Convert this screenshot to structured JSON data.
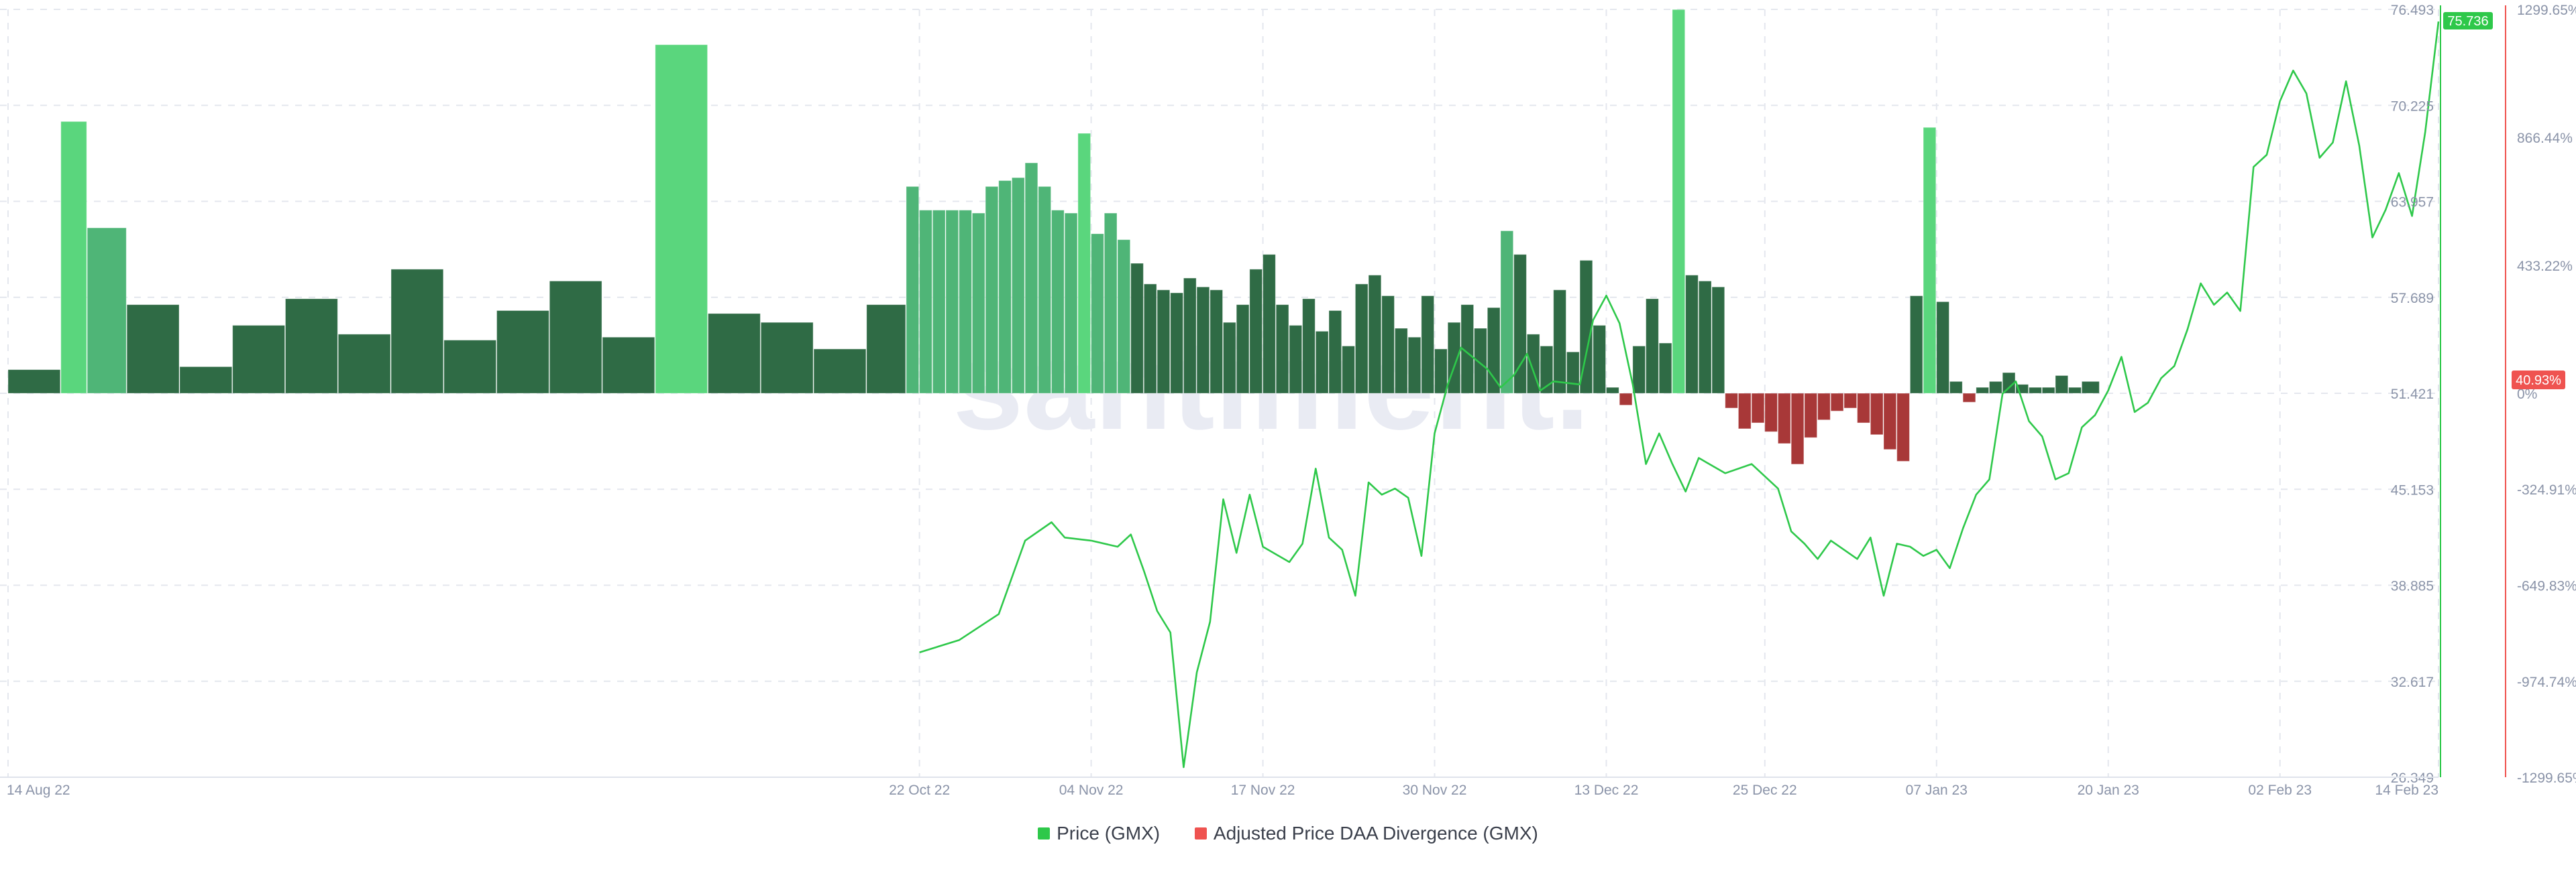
{
  "chart_data": {
    "type": "bar+line",
    "watermark": "santiment.",
    "x_ticks": [
      "14 Aug 22",
      "22 Oct 22",
      "04 Nov 22",
      "17 Nov 22",
      "30 Nov 22",
      "13 Dec 22",
      "25 Dec 22",
      "07 Jan 23",
      "20 Jan 23",
      "02 Feb 23",
      "14 Feb 23"
    ],
    "y_left_ticks": [
      "76.493",
      "70.225",
      "63.957",
      "57.689",
      "51.421",
      "45.153",
      "38.885",
      "32.617",
      "26.349"
    ],
    "y_left_range": [
      26.349,
      76.493
    ],
    "y_right_ticks": [
      "1299.65%",
      "866.44%",
      "433.22%",
      "0%",
      "-324.91%",
      "-649.83%",
      "-974.74%",
      "-1299.65%"
    ],
    "y_right_range": [
      -1299.65,
      1299.65
    ],
    "current_price_label": "75.736",
    "current_divergence_label": "40.93%",
    "colors": {
      "price_line": "#2ec84a",
      "bar_dark": "#2f6b45",
      "bar_mid": "#4fb577",
      "bar_light": "#5ad67d",
      "bar_negative": "#a83838",
      "price_badge": "#2ec84a",
      "divergence_badge": "#ef5350",
      "grid": "#e4e7ee",
      "axis_text": "#8a93a8"
    },
    "legend": [
      {
        "label": "Price (GMX)",
        "color": "#2ec84a"
      },
      {
        "label": "Adjusted Price DAA Divergence (GMX)",
        "color": "#ef5350"
      }
    ],
    "series": [
      {
        "name": "Price (GMX)",
        "axis": "left",
        "points": [
          [
            "22 Oct 22",
            34.5
          ],
          [
            "25 Oct 22",
            35.3
          ],
          [
            "28 Oct 22",
            37.0
          ],
          [
            "30 Oct 22",
            41.8
          ],
          [
            "01 Nov 22",
            43.0
          ],
          [
            "02 Nov 22",
            42.0
          ],
          [
            "04 Nov 22",
            41.8
          ],
          [
            "06 Nov 22",
            41.4
          ],
          [
            "07 Nov 22",
            42.2
          ],
          [
            "08 Nov 22",
            39.8
          ],
          [
            "09 Nov 22",
            37.2
          ],
          [
            "10 Nov 22",
            35.8
          ],
          [
            "11 Nov 22",
            27.0
          ],
          [
            "12 Nov 22",
            33.2
          ],
          [
            "13 Nov 22",
            36.5
          ],
          [
            "14 Nov 22",
            44.5
          ],
          [
            "15 Nov 22",
            41.0
          ],
          [
            "16 Nov 22",
            44.8
          ],
          [
            "17 Nov 22",
            41.4
          ],
          [
            "19 Nov 22",
            40.4
          ],
          [
            "20 Nov 22",
            41.6
          ],
          [
            "21 Nov 22",
            46.5
          ],
          [
            "22 Nov 22",
            42.0
          ],
          [
            "23 Nov 22",
            41.2
          ],
          [
            "24 Nov 22",
            38.2
          ],
          [
            "25 Nov 22",
            45.6
          ],
          [
            "26 Nov 22",
            44.8
          ],
          [
            "27 Nov 22",
            45.2
          ],
          [
            "28 Nov 22",
            44.6
          ],
          [
            "29 Nov 22",
            40.8
          ],
          [
            "30 Nov 22",
            48.8
          ],
          [
            "01 Dec 22",
            52.0
          ],
          [
            "02 Dec 22",
            54.4
          ],
          [
            "04 Dec 22",
            53.0
          ],
          [
            "05 Dec 22",
            51.8
          ],
          [
            "06 Dec 22",
            52.6
          ],
          [
            "07 Dec 22",
            54.0
          ],
          [
            "08 Dec 22",
            51.6
          ],
          [
            "09 Dec 22",
            52.2
          ],
          [
            "11 Dec 22",
            52.0
          ],
          [
            "12 Dec 22",
            56.2
          ],
          [
            "13 Dec 22",
            57.8
          ],
          [
            "14 Dec 22",
            56.0
          ],
          [
            "15 Dec 22",
            52.0
          ],
          [
            "16 Dec 22",
            46.8
          ],
          [
            "17 Dec 22",
            48.8
          ],
          [
            "18 Dec 22",
            46.8
          ],
          [
            "19 Dec 22",
            45.0
          ],
          [
            "20 Dec 22",
            47.2
          ],
          [
            "22 Dec 22",
            46.2
          ],
          [
            "24 Dec 22",
            46.8
          ],
          [
            "26 Dec 22",
            45.2
          ],
          [
            "27 Dec 22",
            42.4
          ],
          [
            "28 Dec 22",
            41.6
          ],
          [
            "29 Dec 22",
            40.6
          ],
          [
            "30 Dec 22",
            41.8
          ],
          [
            "31 Dec 22",
            41.2
          ],
          [
            "01 Jan 23",
            40.6
          ],
          [
            "02 Jan 23",
            42.0
          ],
          [
            "03 Jan 23",
            38.2
          ],
          [
            "04 Jan 23",
            41.6
          ],
          [
            "05 Jan 23",
            41.4
          ],
          [
            "06 Jan 23",
            40.8
          ],
          [
            "07 Jan 23",
            41.2
          ],
          [
            "08 Jan 23",
            40.0
          ],
          [
            "09 Jan 23",
            42.6
          ],
          [
            "10 Jan 23",
            44.8
          ],
          [
            "11 Jan 23",
            45.8
          ],
          [
            "12 Jan 23",
            51.4
          ],
          [
            "13 Jan 23",
            52.2
          ],
          [
            "14 Jan 23",
            49.6
          ],
          [
            "15 Jan 23",
            48.6
          ],
          [
            "16 Jan 23",
            45.8
          ],
          [
            "17 Jan 23",
            46.2
          ],
          [
            "18 Jan 23",
            49.2
          ],
          [
            "19 Jan 23",
            50.0
          ],
          [
            "20 Jan 23",
            51.6
          ],
          [
            "21 Jan 23",
            53.8
          ],
          [
            "22 Jan 23",
            50.2
          ],
          [
            "23 Jan 23",
            50.8
          ],
          [
            "24 Jan 23",
            52.4
          ],
          [
            "25 Jan 23",
            53.2
          ],
          [
            "26 Jan 23",
            55.6
          ],
          [
            "27 Jan 23",
            58.6
          ],
          [
            "28 Jan 23",
            57.2
          ],
          [
            "29 Jan 23",
            58.0
          ],
          [
            "30 Jan 23",
            56.8
          ],
          [
            "31 Jan 23",
            66.2
          ],
          [
            "01 Feb 23",
            67.0
          ],
          [
            "02 Feb 23",
            70.5
          ],
          [
            "03 Feb 23",
            72.5
          ],
          [
            "04 Feb 23",
            71.0
          ],
          [
            "05 Feb 23",
            66.8
          ],
          [
            "06 Feb 23",
            67.8
          ],
          [
            "07 Feb 23",
            71.8
          ],
          [
            "08 Feb 23",
            67.6
          ],
          [
            "09 Feb 23",
            61.6
          ],
          [
            "10 Feb 23",
            63.4
          ],
          [
            "11 Feb 23",
            65.8
          ],
          [
            "12 Feb 23",
            63.0
          ],
          [
            "13 Feb 23",
            68.5
          ],
          [
            "14 Feb 23",
            75.7
          ]
        ]
      },
      {
        "name": "Adjusted Price DAA Divergence (GMX)",
        "axis": "right",
        "bars": [
          [
            "14 Aug 22",
            80
          ],
          [
            "18 Aug 22",
            920
          ],
          [
            "20 Aug 22",
            560
          ],
          [
            "23 Aug 22",
            300
          ],
          [
            "27 Aug 22",
            90
          ],
          [
            "31 Aug 22",
            230
          ],
          [
            "04 Sep 22",
            320
          ],
          [
            "08 Sep 22",
            200
          ],
          [
            "12 Sep 22",
            420
          ],
          [
            "16 Sep 22",
            180
          ],
          [
            "20 Sep 22",
            280
          ],
          [
            "24 Sep 22",
            380
          ],
          [
            "28 Sep 22",
            190
          ],
          [
            "02 Oct 22",
            1180
          ],
          [
            "06 Oct 22",
            270
          ],
          [
            "10 Oct 22",
            240
          ],
          [
            "14 Oct 22",
            150
          ],
          [
            "18 Oct 22",
            300
          ],
          [
            "21 Oct 22",
            700
          ],
          [
            "22 Oct 22",
            620
          ],
          [
            "23 Oct 22",
            620
          ],
          [
            "24 Oct 22",
            620
          ],
          [
            "25 Oct 22",
            620
          ],
          [
            "26 Oct 22",
            610
          ],
          [
            "27 Oct 22",
            700
          ],
          [
            "28 Oct 22",
            720
          ],
          [
            "29 Oct 22",
            730
          ],
          [
            "30 Oct 22",
            780
          ],
          [
            "31 Oct 22",
            700
          ],
          [
            "01 Nov 22",
            620
          ],
          [
            "02 Nov 22",
            610
          ],
          [
            "03 Nov 22",
            880
          ],
          [
            "04 Nov 22",
            540
          ],
          [
            "05 Nov 22",
            610
          ],
          [
            "06 Nov 22",
            520
          ],
          [
            "07 Nov 22",
            440
          ],
          [
            "08 Nov 22",
            370
          ],
          [
            "09 Nov 22",
            350
          ],
          [
            "10 Nov 22",
            340
          ],
          [
            "11 Nov 22",
            390
          ],
          [
            "12 Nov 22",
            360
          ],
          [
            "13 Nov 22",
            350
          ],
          [
            "14 Nov 22",
            240
          ],
          [
            "15 Nov 22",
            300
          ],
          [
            "16 Nov 22",
            420
          ],
          [
            "17 Nov 22",
            470
          ],
          [
            "18 Nov 22",
            300
          ],
          [
            "19 Nov 22",
            230
          ],
          [
            "20 Nov 22",
            320
          ],
          [
            "21 Nov 22",
            210
          ],
          [
            "22 Nov 22",
            280
          ],
          [
            "23 Nov 22",
            160
          ],
          [
            "24 Nov 22",
            370
          ],
          [
            "25 Nov 22",
            400
          ],
          [
            "26 Nov 22",
            330
          ],
          [
            "27 Nov 22",
            220
          ],
          [
            "28 Nov 22",
            190
          ],
          [
            "29 Nov 22",
            330
          ],
          [
            "30 Nov 22",
            150
          ],
          [
            "01 Dec 22",
            240
          ],
          [
            "02 Dec 22",
            300
          ],
          [
            "03 Dec 22",
            220
          ],
          [
            "04 Dec 22",
            290
          ],
          [
            "05 Dec 22",
            550
          ],
          [
            "06 Dec 22",
            470
          ],
          [
            "07 Dec 22",
            200
          ],
          [
            "08 Dec 22",
            160
          ],
          [
            "09 Dec 22",
            350
          ],
          [
            "10 Dec 22",
            140
          ],
          [
            "11 Dec 22",
            450
          ],
          [
            "12 Dec 22",
            230
          ],
          [
            "13 Dec 22",
            20
          ],
          [
            "14 Dec 22",
            -40
          ],
          [
            "15 Dec 22",
            160
          ],
          [
            "16 Dec 22",
            320
          ],
          [
            "17 Dec 22",
            170
          ],
          [
            "18 Dec 22",
            1299
          ],
          [
            "19 Dec 22",
            400
          ],
          [
            "20 Dec 22",
            380
          ],
          [
            "21 Dec 22",
            360
          ],
          [
            "22 Dec 22",
            -50
          ],
          [
            "23 Dec 22",
            -120
          ],
          [
            "24 Dec 22",
            -100
          ],
          [
            "25 Dec 22",
            -130
          ],
          [
            "26 Dec 22",
            -170
          ],
          [
            "27 Dec 22",
            -240
          ],
          [
            "28 Dec 22",
            -150
          ],
          [
            "29 Dec 22",
            -90
          ],
          [
            "30 Dec 22",
            -60
          ],
          [
            "31 Dec 22",
            -50
          ],
          [
            "01 Jan 23",
            -100
          ],
          [
            "02 Jan 23",
            -140
          ],
          [
            "03 Jan 23",
            -190
          ],
          [
            "04 Jan 23",
            -230
          ],
          [
            "05 Jan 23",
            330
          ],
          [
            "06 Jan 23",
            900
          ],
          [
            "07 Jan 23",
            310
          ],
          [
            "08 Jan 23",
            40
          ],
          [
            "09 Jan 23",
            -30
          ],
          [
            "10 Jan 23",
            20
          ],
          [
            "11 Jan 23",
            40
          ],
          [
            "12 Jan 23",
            70
          ],
          [
            "13 Jan 23",
            30
          ],
          [
            "14 Jan 23",
            20
          ],
          [
            "15 Jan 23",
            20
          ],
          [
            "16 Jan 23",
            60
          ],
          [
            "17 Jan 23",
            20
          ],
          [
            "18 Jan 23",
            40
          ]
        ]
      }
    ]
  }
}
